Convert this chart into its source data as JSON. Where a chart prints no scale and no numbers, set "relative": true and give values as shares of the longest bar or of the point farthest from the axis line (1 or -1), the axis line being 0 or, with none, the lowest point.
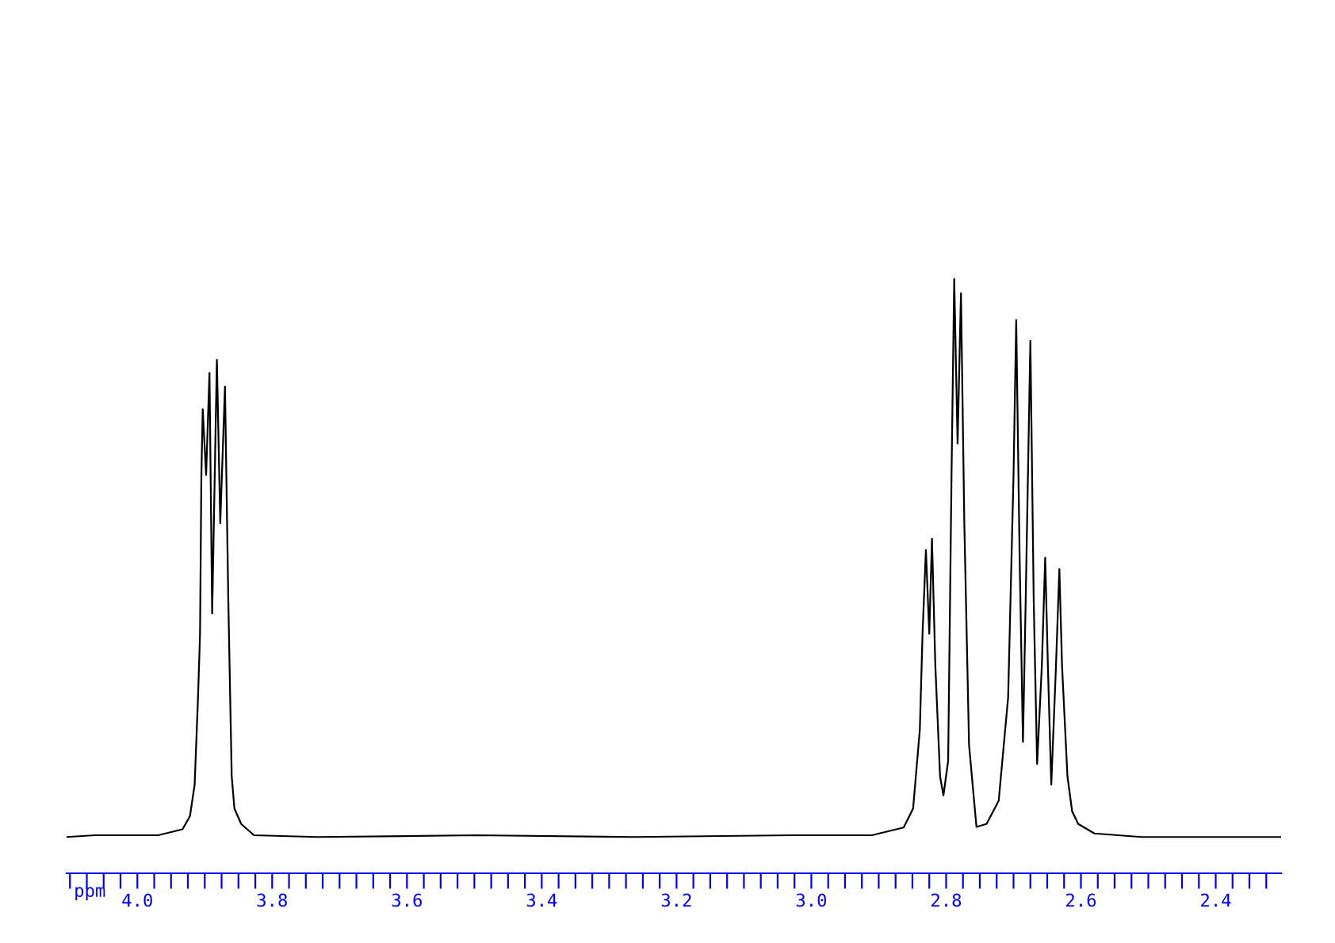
{
  "chart_data": {
    "type": "line",
    "relative": true,
    "xlabel": "ppm",
    "grid": false,
    "legend": false,
    "marker": "none",
    "line_style": "solid",
    "xlim": [
      4.105,
      2.303
    ],
    "xticks": [
      {
        "value": 4.1,
        "label": null
      },
      {
        "value": 4.075,
        "label": null
      },
      {
        "value": 4.05,
        "label": null
      },
      {
        "value": 4.025,
        "label": null
      },
      {
        "value": 4.0,
        "label": "4.0"
      },
      {
        "value": 3.975,
        "label": null
      },
      {
        "value": 3.95,
        "label": null
      },
      {
        "value": 3.925,
        "label": null
      },
      {
        "value": 3.9,
        "label": null
      },
      {
        "value": 3.875,
        "label": null
      },
      {
        "value": 3.85,
        "label": null
      },
      {
        "value": 3.825,
        "label": null
      },
      {
        "value": 3.8,
        "label": "3.8"
      },
      {
        "value": 3.775,
        "label": null
      },
      {
        "value": 3.75,
        "label": null
      },
      {
        "value": 3.725,
        "label": null
      },
      {
        "value": 3.7,
        "label": null
      },
      {
        "value": 3.675,
        "label": null
      },
      {
        "value": 3.65,
        "label": null
      },
      {
        "value": 3.625,
        "label": null
      },
      {
        "value": 3.6,
        "label": "3.6"
      },
      {
        "value": 3.575,
        "label": null
      },
      {
        "value": 3.55,
        "label": null
      },
      {
        "value": 3.525,
        "label": null
      },
      {
        "value": 3.5,
        "label": null
      },
      {
        "value": 3.475,
        "label": null
      },
      {
        "value": 3.45,
        "label": null
      },
      {
        "value": 3.425,
        "label": null
      },
      {
        "value": 3.4,
        "label": "3.4"
      },
      {
        "value": 3.375,
        "label": null
      },
      {
        "value": 3.35,
        "label": null
      },
      {
        "value": 3.325,
        "label": null
      },
      {
        "value": 3.3,
        "label": null
      },
      {
        "value": 3.275,
        "label": null
      },
      {
        "value": 3.25,
        "label": null
      },
      {
        "value": 3.225,
        "label": null
      },
      {
        "value": 3.2,
        "label": "3.2"
      },
      {
        "value": 3.175,
        "label": null
      },
      {
        "value": 3.15,
        "label": null
      },
      {
        "value": 3.125,
        "label": null
      },
      {
        "value": 3.1,
        "label": null
      },
      {
        "value": 3.075,
        "label": null
      },
      {
        "value": 3.05,
        "label": null
      },
      {
        "value": 3.025,
        "label": null
      },
      {
        "value": 3.0,
        "label": "3.0"
      },
      {
        "value": 2.975,
        "label": null
      },
      {
        "value": 2.95,
        "label": null
      },
      {
        "value": 2.925,
        "label": null
      },
      {
        "value": 2.9,
        "label": null
      },
      {
        "value": 2.875,
        "label": null
      },
      {
        "value": 2.85,
        "label": null
      },
      {
        "value": 2.825,
        "label": null
      },
      {
        "value": 2.8,
        "label": "2.8"
      },
      {
        "value": 2.775,
        "label": null
      },
      {
        "value": 2.75,
        "label": null
      },
      {
        "value": 2.725,
        "label": null
      },
      {
        "value": 2.7,
        "label": null
      },
      {
        "value": 2.675,
        "label": null
      },
      {
        "value": 2.65,
        "label": null
      },
      {
        "value": 2.625,
        "label": null
      },
      {
        "value": 2.6,
        "label": "2.6"
      },
      {
        "value": 2.575,
        "label": null
      },
      {
        "value": 2.55,
        "label": null
      },
      {
        "value": 2.525,
        "label": null
      },
      {
        "value": 2.5,
        "label": null
      },
      {
        "value": 2.475,
        "label": null
      },
      {
        "value": 2.45,
        "label": null
      },
      {
        "value": 2.425,
        "label": null
      },
      {
        "value": 2.4,
        "label": "2.4"
      },
      {
        "value": 2.375,
        "label": null
      },
      {
        "value": 2.35,
        "label": null
      },
      {
        "value": 2.325,
        "label": null
      }
    ],
    "series": [
      {
        "color": "#000000",
        "x": [
          4.105,
          4.063,
          3.969,
          3.933,
          3.922,
          3.915,
          3.91,
          3.907,
          3.905,
          3.903,
          3.898,
          3.893,
          3.889,
          3.882,
          3.877,
          3.87,
          3.865,
          3.86,
          3.856,
          3.846,
          3.827,
          3.733,
          3.498,
          3.263,
          3.028,
          2.91,
          2.863,
          2.849,
          2.839,
          2.835,
          2.83,
          2.825,
          2.821,
          2.816,
          2.809,
          2.804,
          2.797,
          2.792,
          2.788,
          2.783,
          2.778,
          2.773,
          2.766,
          2.755,
          2.74,
          2.722,
          2.708,
          2.7,
          2.696,
          2.691,
          2.686,
          2.682,
          2.675,
          2.67,
          2.665,
          2.658,
          2.653,
          2.649,
          2.644,
          2.637,
          2.632,
          2.628,
          2.62,
          2.613,
          2.604,
          2.58,
          2.51,
          2.303
        ],
        "values": [
          0.061,
          0.064,
          0.064,
          0.074,
          0.096,
          0.149,
          0.296,
          0.403,
          0.67,
          0.781,
          0.67,
          0.842,
          0.437,
          0.864,
          0.589,
          0.819,
          0.456,
          0.163,
          0.109,
          0.083,
          0.064,
          0.061,
          0.064,
          0.061,
          0.064,
          0.064,
          0.077,
          0.109,
          0.242,
          0.403,
          0.544,
          0.403,
          0.563,
          0.349,
          0.163,
          0.131,
          0.189,
          0.67,
          1.0,
          0.723,
          0.976,
          0.589,
          0.216,
          0.078,
          0.083,
          0.122,
          0.296,
          0.67,
          0.931,
          0.536,
          0.221,
          0.456,
          0.896,
          0.456,
          0.184,
          0.349,
          0.531,
          0.349,
          0.149,
          0.349,
          0.512,
          0.349,
          0.163,
          0.104,
          0.083,
          0.067,
          0.061,
          0.061
        ]
      }
    ]
  }
}
